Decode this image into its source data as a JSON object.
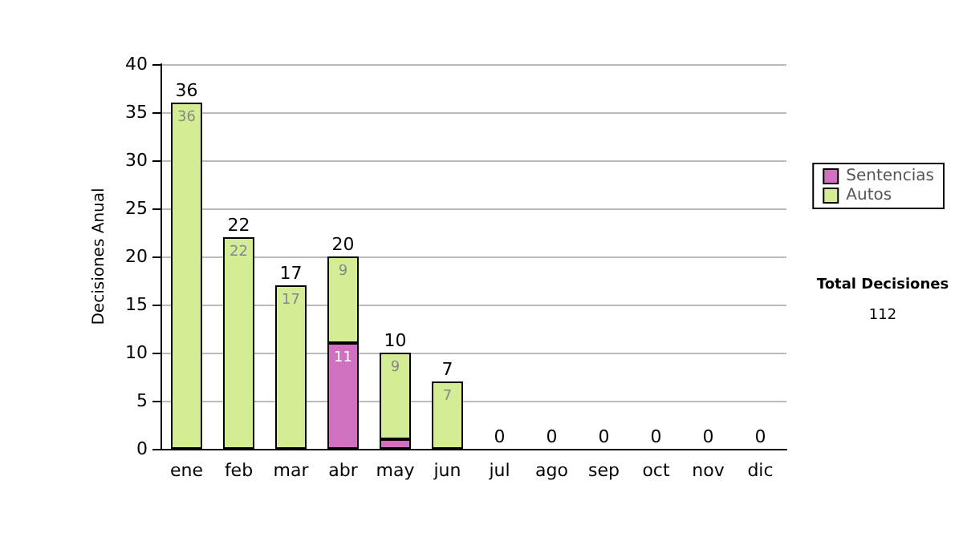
{
  "chart_data": {
    "type": "bar",
    "stacked": true,
    "ylabel": "Decisiones Anual",
    "categories": [
      "ene",
      "feb",
      "mar",
      "abr",
      "may",
      "jun",
      "jul",
      "ago",
      "sep",
      "oct",
      "nov",
      "dic"
    ],
    "series": [
      {
        "name": "Sentencias",
        "color": "#d070c0",
        "values": [
          0,
          0,
          0,
          11,
          1,
          0,
          0,
          0,
          0,
          0,
          0,
          0
        ],
        "value_labels": [
          null,
          null,
          null,
          "11",
          null,
          null,
          null,
          null,
          null,
          null,
          null,
          null
        ]
      },
      {
        "name": "Autos",
        "color": "#d4ec94",
        "values": [
          36,
          22,
          17,
          9,
          9,
          7,
          0,
          0,
          0,
          0,
          0,
          0
        ],
        "value_labels": [
          "36",
          "22",
          "17",
          "9",
          "9",
          "7",
          null,
          null,
          null,
          null,
          null,
          null
        ]
      }
    ],
    "totals": [
      "36",
      "22",
      "17",
      "20",
      "10",
      "7",
      "0",
      "0",
      "0",
      "0",
      "0",
      "0"
    ],
    "ylim": [
      0,
      40
    ],
    "yticks": [
      0,
      5,
      10,
      15,
      20,
      25,
      30,
      35,
      40
    ],
    "grid": "y",
    "legend": "right",
    "annotations": [
      "Total Decisiones",
      "112"
    ]
  }
}
